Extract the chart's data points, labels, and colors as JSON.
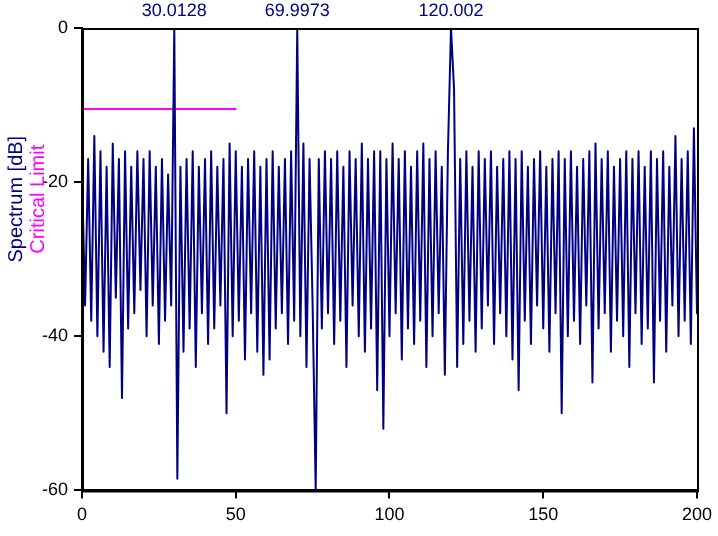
{
  "chart_data": {
    "type": "line",
    "ylabel": "Spectrum [dB]",
    "xlim": [
      0,
      200
    ],
    "ylim": [
      -60,
      0
    ],
    "xticks": [
      0,
      50,
      100,
      150,
      200
    ],
    "yticks": [
      -60,
      -40,
      -20,
      0
    ],
    "grid": false,
    "legend": false,
    "marker": "none",
    "line_style": "solid",
    "annotations": [
      {
        "text": "30.0128",
        "x": 30.0128,
        "y": 0
      },
      {
        "text": "69.9973",
        "x": 69.9973,
        "y": 0
      },
      {
        "text": "120.002",
        "x": 120.002,
        "y": 0
      }
    ],
    "series": [
      {
        "color": "#000080",
        "x": [
          0,
          1,
          2,
          3,
          4,
          5,
          6,
          7,
          8,
          9,
          10,
          11,
          12,
          13,
          14,
          15,
          16,
          17,
          18,
          19,
          20,
          21,
          22,
          23,
          24,
          25,
          26,
          27,
          28,
          29,
          30.0128,
          31,
          32,
          33,
          34,
          35,
          36,
          37,
          38,
          39,
          40,
          41,
          42,
          43,
          44,
          45,
          46,
          47,
          48,
          49,
          50,
          51,
          52,
          53,
          54,
          55,
          56,
          57,
          58,
          59,
          60,
          61,
          62,
          63,
          64,
          65,
          66,
          67,
          68,
          69,
          69.9973,
          71,
          72,
          73,
          74,
          75,
          76,
          77,
          78,
          79,
          80,
          81,
          82,
          83,
          84,
          85,
          86,
          87,
          88,
          89,
          90,
          91,
          92,
          93,
          94,
          95,
          96,
          97,
          98,
          99,
          100,
          101,
          102,
          103,
          104,
          105,
          106,
          107,
          108,
          109,
          110,
          111,
          112,
          113,
          114,
          115,
          116,
          117,
          118,
          119,
          120.002,
          121,
          122,
          123,
          124,
          125,
          126,
          127,
          128,
          129,
          130,
          131,
          132,
          133,
          134,
          135,
          136,
          137,
          138,
          139,
          140,
          141,
          142,
          143,
          144,
          145,
          146,
          147,
          148,
          149,
          150,
          151,
          152,
          153,
          154,
          155,
          156,
          157,
          158,
          159,
          160,
          161,
          162,
          163,
          164,
          165,
          166,
          167,
          168,
          169,
          170,
          171,
          172,
          173,
          174,
          175,
          176,
          177,
          178,
          179,
          180,
          181,
          182,
          183,
          184,
          185,
          186,
          187,
          188,
          189,
          190,
          191,
          192,
          193,
          194,
          195,
          196,
          197,
          198,
          199,
          200
        ],
        "values": [
          -19,
          -36,
          -17,
          -38,
          -14,
          -40,
          -16,
          -42,
          -18,
          -44,
          -15,
          -35,
          -17,
          -48,
          -16,
          -39,
          -18,
          -37,
          -16,
          -34,
          -17,
          -40,
          -16,
          -36,
          -18,
          -41,
          -17,
          -38,
          -19,
          -36,
          0,
          -58.5,
          -18,
          -42,
          -17,
          -39,
          -16,
          -44,
          -18,
          -37,
          -17,
          -41,
          -16,
          -39,
          -18,
          -36,
          -17,
          -50,
          -15,
          -40,
          -16,
          -38,
          -18,
          -43,
          -17,
          -37,
          -16,
          -42,
          -18,
          -45,
          -17,
          -43,
          -16,
          -39,
          -18,
          -37,
          -17,
          -41,
          -16,
          -38,
          0,
          -40,
          -15,
          -44,
          -17,
          -36,
          -60,
          -17,
          -39,
          -16,
          -37,
          -17,
          -41,
          -16,
          -38,
          -18,
          -44,
          -16,
          -36,
          -17,
          -40,
          -15,
          -42,
          -17,
          -39,
          -16,
          -47,
          -16,
          -52,
          -17,
          -40,
          -15,
          -37,
          -17,
          -43,
          -16,
          -39,
          -18,
          -41,
          -16,
          -38,
          -15,
          -44,
          -17,
          -40,
          -16,
          -37,
          -18,
          -45,
          -16,
          0,
          -8,
          -44,
          -17,
          -41,
          -16,
          -38,
          -18,
          -42,
          -16,
          -39,
          -17,
          -36,
          -16,
          -41,
          -18,
          -37,
          -17,
          -40,
          -16,
          -43,
          -17,
          -47,
          -16,
          -38,
          -18,
          -41,
          -17,
          -36,
          -16,
          -39,
          -18,
          -42,
          -17,
          -37,
          -16,
          -50,
          -17,
          -40,
          -16,
          -38,
          -18,
          -41,
          -17,
          -36,
          -16,
          -46,
          -15,
          -39,
          -17,
          -37,
          -16,
          -42,
          -18,
          -38,
          -17,
          -40,
          -16,
          -44,
          -17,
          -37,
          -16,
          -41,
          -18,
          -39,
          -16,
          -46,
          -17,
          -38,
          -16,
          -42,
          -18,
          -36,
          -14,
          -40,
          -17,
          -38,
          -16,
          -41,
          -13,
          -37
        ]
      },
      {
        "name": "Critical Limit",
        "color": "#ff00ff",
        "x": [
          0,
          50
        ],
        "values": [
          -10.5,
          -10.5
        ]
      }
    ]
  }
}
